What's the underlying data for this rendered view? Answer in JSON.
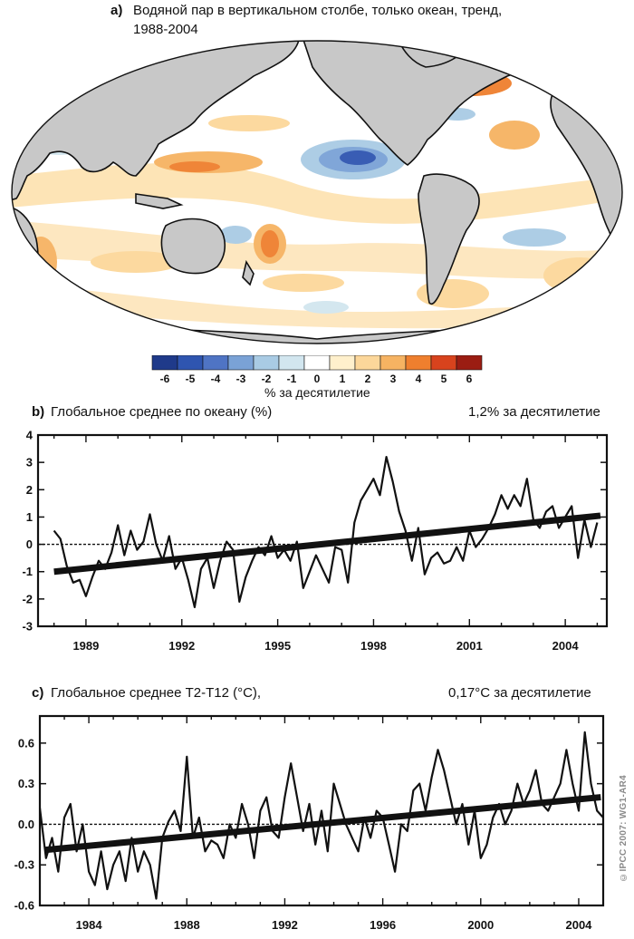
{
  "panel_a": {
    "label": "a)",
    "title_line1": "Водяной пар в вертикальном столбе, только океан, тренд,",
    "title_line2": "1988-2004",
    "colorbar_label": "% за десятилетие",
    "colorbar_ticks": [
      "-6",
      "-5",
      "-4",
      "-3",
      "-2",
      "-1",
      "0",
      "1",
      "2",
      "3",
      "4",
      "5",
      "6"
    ],
    "colors": [
      "#1f3a8a",
      "#2f55b0",
      "#4f74c4",
      "#7aa2d6",
      "#a9cbe4",
      "#d2e6ef",
      "#ffffff",
      "#fff0cc",
      "#fcd79a",
      "#f6b362",
      "#ef7f2e",
      "#d8431d",
      "#9b1d12"
    ],
    "land_color": "#c8c8c8"
  },
  "panel_b": {
    "label": "b)",
    "title": "Глобальное среднее по океану (%)",
    "trend_text": "1,2% за десятилетие"
  },
  "panel_c": {
    "label": "c)",
    "title": "Глобальное среднее T2-T12 (°C),",
    "trend_text": "0,17°C за десятилетие"
  },
  "credit": "©IPCC 2007: WG1-AR4",
  "chart_data": [
    {
      "type": "line",
      "id": "b",
      "title": "Глобальное среднее по океану (%)",
      "xlim": [
        1987.5,
        2005.3
      ],
      "ylim": [
        -3,
        4
      ],
      "xticks": [
        1989,
        1992,
        1995,
        1998,
        2001,
        2004
      ],
      "xtick_labels": [
        "1989",
        "1992",
        "1995",
        "1998",
        "2001",
        "2004"
      ],
      "yticks": [
        4,
        3,
        2,
        1,
        0,
        -1,
        -2,
        -3
      ],
      "ytick_labels": [
        "4",
        "3",
        "2",
        "1",
        "0",
        "-1",
        "-2",
        "-3"
      ],
      "zero_line": true,
      "trend": {
        "x": [
          1988.0,
          2005.1
        ],
        "y": [
          -1.0,
          1.05
        ]
      },
      "series": [
        {
          "name": "anomaly",
          "x": [
            1988.0,
            1988.2,
            1988.4,
            1988.6,
            1988.8,
            1989.0,
            1989.2,
            1989.4,
            1989.6,
            1989.8,
            1990.0,
            1990.2,
            1990.4,
            1990.6,
            1990.8,
            1991.0,
            1991.2,
            1991.4,
            1991.6,
            1991.8,
            1992.0,
            1992.2,
            1992.4,
            1992.6,
            1992.8,
            1993.0,
            1993.2,
            1993.4,
            1993.6,
            1993.8,
            1994.0,
            1994.2,
            1994.4,
            1994.6,
            1994.8,
            1995.0,
            1995.2,
            1995.4,
            1995.6,
            1995.8,
            1996.0,
            1996.2,
            1996.4,
            1996.6,
            1996.8,
            1997.0,
            1997.2,
            1997.4,
            1997.6,
            1997.8,
            1998.0,
            1998.2,
            1998.4,
            1998.6,
            1998.8,
            1999.0,
            1999.2,
            1999.4,
            1999.6,
            1999.8,
            2000.0,
            2000.2,
            2000.4,
            2000.6,
            2000.8,
            2001.0,
            2001.2,
            2001.4,
            2001.6,
            2001.8,
            2002.0,
            2002.2,
            2002.4,
            2002.6,
            2002.8,
            2003.0,
            2003.2,
            2003.4,
            2003.6,
            2003.8,
            2004.0,
            2004.2,
            2004.4,
            2004.6,
            2004.8,
            2005.0
          ],
          "y": [
            0.5,
            0.2,
            -0.8,
            -1.4,
            -1.3,
            -1.9,
            -1.2,
            -0.6,
            -0.9,
            -0.3,
            0.7,
            -0.4,
            0.5,
            -0.2,
            0.1,
            1.1,
            0.0,
            -0.6,
            0.3,
            -0.9,
            -0.5,
            -1.3,
            -2.3,
            -0.9,
            -0.5,
            -1.6,
            -0.6,
            0.1,
            -0.2,
            -2.1,
            -1.2,
            -0.6,
            -0.1,
            -0.4,
            0.3,
            -0.5,
            -0.2,
            -0.6,
            0.1,
            -1.6,
            -1.0,
            -0.4,
            -0.9,
            -1.4,
            -0.1,
            -0.2,
            -1.4,
            0.8,
            1.6,
            2.0,
            2.4,
            1.8,
            3.2,
            2.3,
            1.2,
            0.5,
            -0.6,
            0.6,
            -1.1,
            -0.5,
            -0.3,
            -0.7,
            -0.6,
            -0.1,
            -0.6,
            0.5,
            -0.1,
            0.2,
            0.6,
            1.1,
            1.8,
            1.3,
            1.8,
            1.4,
            2.4,
            0.9,
            0.6,
            1.2,
            1.4,
            0.6,
            1.0,
            1.4,
            -0.5,
            0.9,
            -0.1,
            0.8
          ]
        }
      ]
    },
    {
      "type": "line",
      "id": "c",
      "title": "Глобальное среднее T2-T12 (°C),",
      "xlim": [
        1982.0,
        2005.0
      ],
      "ylim": [
        -0.6,
        0.8
      ],
      "xticks": [
        1984,
        1988,
        1992,
        1996,
        2000,
        2004
      ],
      "xtick_labels": [
        "1984",
        "1988",
        "1992",
        "1996",
        "2000",
        "2004"
      ],
      "yticks": [
        0.6,
        0.3,
        0.0,
        -0.3,
        -0.6
      ],
      "ytick_labels": [
        "0.6",
        "0.3",
        "0.0",
        "-0.3",
        "-0.6"
      ],
      "zero_line": true,
      "trend": {
        "x": [
          1982.2,
          2004.9
        ],
        "y": [
          -0.19,
          0.2
        ]
      },
      "series": [
        {
          "name": "anomaly",
          "x": [
            1982.0,
            1982.25,
            1982.5,
            1982.75,
            1983.0,
            1983.25,
            1983.5,
            1983.75,
            1984.0,
            1984.25,
            1984.5,
            1984.75,
            1985.0,
            1985.25,
            1985.5,
            1985.75,
            1986.0,
            1986.25,
            1986.5,
            1986.75,
            1987.0,
            1987.25,
            1987.5,
            1987.75,
            1988.0,
            1988.25,
            1988.5,
            1988.75,
            1989.0,
            1989.25,
            1989.5,
            1989.75,
            1990.0,
            1990.25,
            1990.5,
            1990.75,
            1991.0,
            1991.25,
            1991.5,
            1991.75,
            1992.0,
            1992.25,
            1992.5,
            1992.75,
            1993.0,
            1993.25,
            1993.5,
            1993.75,
            1994.0,
            1994.25,
            1994.5,
            1994.75,
            1995.0,
            1995.25,
            1995.5,
            1995.75,
            1996.0,
            1996.25,
            1996.5,
            1996.75,
            1997.0,
            1997.25,
            1997.5,
            1997.75,
            1998.0,
            1998.25,
            1998.5,
            1998.75,
            1999.0,
            1999.25,
            1999.5,
            1999.75,
            2000.0,
            2000.25,
            2000.5,
            2000.75,
            2001.0,
            2001.25,
            2001.5,
            2001.75,
            2002.0,
            2002.25,
            2002.5,
            2002.75,
            2003.0,
            2003.25,
            2003.5,
            2003.75,
            2004.0,
            2004.25,
            2004.5,
            2004.75,
            2005.0
          ],
          "y": [
            0.12,
            -0.25,
            -0.1,
            -0.35,
            0.05,
            0.15,
            -0.2,
            0.0,
            -0.35,
            -0.45,
            -0.2,
            -0.48,
            -0.3,
            -0.2,
            -0.42,
            -0.1,
            -0.35,
            -0.2,
            -0.3,
            -0.55,
            -0.1,
            0.02,
            0.1,
            -0.05,
            0.5,
            -0.1,
            0.05,
            -0.2,
            -0.12,
            -0.15,
            -0.25,
            0.0,
            -0.1,
            0.15,
            0.0,
            -0.25,
            0.1,
            0.2,
            -0.05,
            -0.1,
            0.2,
            0.45,
            0.2,
            -0.05,
            0.15,
            -0.15,
            0.1,
            -0.2,
            0.3,
            0.15,
            0.0,
            -0.1,
            -0.2,
            0.05,
            -0.1,
            0.1,
            0.05,
            -0.15,
            -0.35,
            0.0,
            -0.05,
            0.25,
            0.3,
            0.1,
            0.35,
            0.55,
            0.4,
            0.2,
            0.0,
            0.15,
            -0.15,
            0.1,
            -0.25,
            -0.15,
            0.05,
            0.15,
            0.0,
            0.1,
            0.3,
            0.15,
            0.25,
            0.4,
            0.15,
            0.1,
            0.2,
            0.3,
            0.55,
            0.3,
            0.1,
            0.68,
            0.3,
            0.1,
            0.05
          ]
        }
      ]
    }
  ]
}
